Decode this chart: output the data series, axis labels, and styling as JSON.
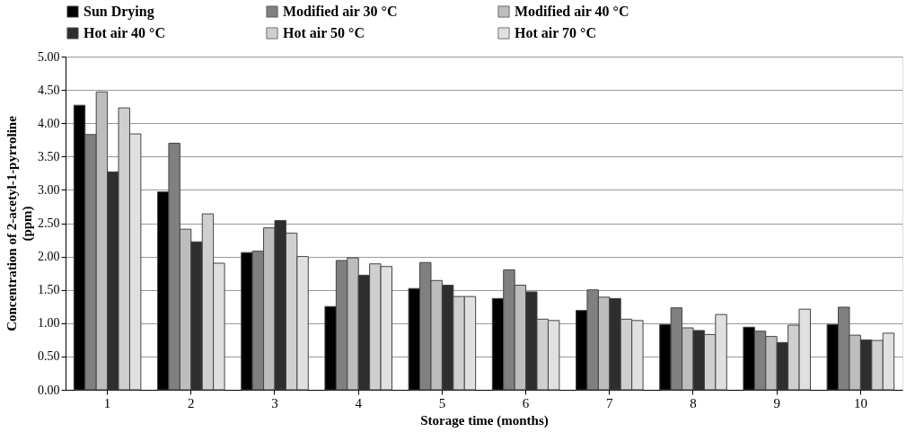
{
  "chart_data": {
    "type": "bar",
    "xlabel": "Storage time (months)",
    "ylabel": "Concentration of  2-acetyl-1-pyrroline\n(ppm)",
    "categories": [
      "1",
      "2",
      "3",
      "4",
      "5",
      "6",
      "7",
      "8",
      "9",
      "10"
    ],
    "series": [
      {
        "name": "Sun Drying",
        "color": "#000000",
        "values": [
          4.27,
          2.97,
          2.06,
          1.25,
          1.52,
          1.37,
          1.19,
          0.98,
          0.94,
          0.98
        ]
      },
      {
        "name": "Modified air 30 °C",
        "color": "#808080",
        "values": [
          3.83,
          3.7,
          2.08,
          1.94,
          1.91,
          1.8,
          1.5,
          1.23,
          0.88,
          1.24
        ]
      },
      {
        "name": "Modified air 40 °C",
        "color": "#bdbdbd",
        "values": [
          4.47,
          2.41,
          2.43,
          1.98,
          1.64,
          1.57,
          1.39,
          0.93,
          0.8,
          0.82
        ]
      },
      {
        "name": "Hot air 40 °C",
        "color": "#2e2e2e",
        "values": [
          3.27,
          2.22,
          2.54,
          1.72,
          1.57,
          1.47,
          1.37,
          0.89,
          0.71,
          0.75
        ]
      },
      {
        "name": "Hot air 50 °C",
        "color": "#cfcfcf",
        "values": [
          4.23,
          2.64,
          2.35,
          1.89,
          1.4,
          1.06,
          1.06,
          0.83,
          0.97,
          0.74
        ]
      },
      {
        "name": "Hot air 70 °C",
        "color": "#e0e0e0",
        "values": [
          3.84,
          1.9,
          2.0,
          1.85,
          1.4,
          1.04,
          1.04,
          1.13,
          1.21,
          0.85
        ]
      }
    ],
    "ylim": [
      0,
      5
    ],
    "yticks": [
      {
        "value": 0,
        "label": "0.00"
      },
      {
        "value": 0.5,
        "label": "0.50"
      },
      {
        "value": 1,
        "label": "1.00"
      },
      {
        "value": 1.5,
        "label": "1.50"
      },
      {
        "value": 2,
        "label": "2.00"
      },
      {
        "value": 2.5,
        "label": "2.50"
      },
      {
        "value": 3,
        "label": "3.00"
      },
      {
        "value": 3.5,
        "label": "3.50"
      },
      {
        "value": 4,
        "label": "4.00"
      },
      {
        "value": 4.5,
        "label": "4.50"
      },
      {
        "value": 5,
        "label": "5.00"
      }
    ],
    "grid": "y",
    "legend": "top"
  }
}
